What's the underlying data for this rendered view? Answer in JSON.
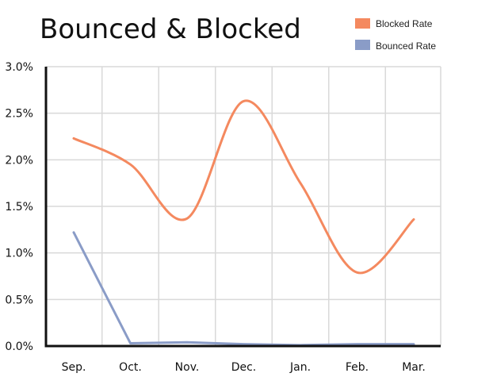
{
  "chart_data": {
    "type": "line",
    "title": "Bounced & Blocked",
    "categories": [
      "Sep.",
      "Oct.",
      "Nov.",
      "Dec.",
      "Jan.",
      "Feb.",
      "Mar."
    ],
    "y_ticks": [
      "0.0%",
      "0.5%",
      "1.0%",
      "1.5%",
      "2.0%",
      "2.5%",
      "3.0%"
    ],
    "ylim": [
      0,
      3.0
    ],
    "y_unit": "%",
    "grid": true,
    "legend_position": "top-right",
    "series": [
      {
        "name": "Blocked Rate",
        "color": "#f4895f",
        "smooth": true,
        "values": [
          2.23,
          1.95,
          1.37,
          2.63,
          1.75,
          0.79,
          1.36
        ]
      },
      {
        "name": "Bounced Rate",
        "color": "#8a9cc7",
        "smooth": false,
        "values": [
          1.22,
          0.03,
          0.04,
          0.02,
          0.01,
          0.02,
          0.02
        ]
      }
    ]
  }
}
